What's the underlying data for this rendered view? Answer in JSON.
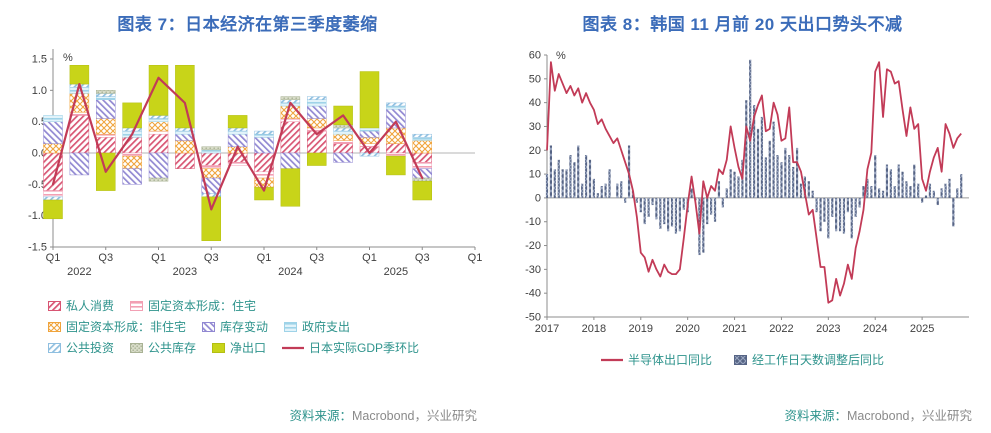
{
  "colors": {
    "title": "#3B6CB9",
    "teal_text": "#2E938C",
    "gray_text": "#8A8A8A",
    "axis": "#8C8C8C",
    "tick_text": "#404040",
    "crimson": "#C23B57"
  },
  "chart_data": [
    {
      "id": "japan-gdp",
      "type": "bar",
      "stacked": true,
      "title": "图表 7：日本经济在第三季度萎缩",
      "unit_label": "%",
      "ylim": [
        -1.5,
        1.5
      ],
      "yticks": [
        1.5,
        1.0,
        0.5,
        0.0,
        -0.5,
        -1.0,
        -1.5
      ],
      "x_tick_labels": [
        "Q1",
        "Q3",
        "Q1",
        "Q3",
        "Q1",
        "Q3",
        "Q1",
        "Q3",
        "Q1"
      ],
      "year_labels": [
        "2022",
        "2023",
        "2024",
        "2025"
      ],
      "categories": [
        "2022Q1",
        "2022Q2",
        "2022Q3",
        "2022Q4",
        "2023Q1",
        "2023Q2",
        "2023Q3",
        "2023Q4",
        "2024Q1",
        "2024Q2",
        "2024Q3",
        "2024Q4",
        "2025Q1",
        "2025Q2",
        "2025Q3"
      ],
      "series": [
        {
          "name": "私人消费",
          "pattern": {
            "kind": "diag",
            "fg": "#D85573",
            "bg": "#FFFFFF"
          },
          "values": [
            -0.6,
            0.6,
            0.25,
            0.25,
            0.3,
            -0.25,
            -0.2,
            -0.15,
            -0.3,
            0.5,
            0.35,
            0.15,
            0.1,
            0.15,
            -0.15
          ]
        },
        {
          "name": "固定资本形成：住宅",
          "pattern": {
            "kind": "horiz",
            "fg": "#F2A0B4",
            "bg": "#FFFFFF"
          },
          "values": [
            -0.1,
            0.05,
            0.05,
            -0.05,
            0.05,
            0.0,
            -0.05,
            -0.05,
            -0.1,
            0.05,
            0.05,
            0.05,
            0.05,
            -0.05,
            -0.1
          ]
        },
        {
          "name": "固定资本形成：非住宅",
          "pattern": {
            "kind": "cross",
            "fg": "#F0A43C",
            "bg": "#FFFFFF"
          },
          "values": [
            0.15,
            0.3,
            0.25,
            -0.2,
            0.15,
            0.2,
            -0.15,
            0.1,
            -0.15,
            0.2,
            0.15,
            0.1,
            0.1,
            0.25,
            0.2
          ]
        },
        {
          "name": "库存变动",
          "pattern": {
            "kind": "diag2",
            "fg": "#9188D2",
            "bg": "#FFFFFF"
          },
          "values": [
            0.35,
            -0.35,
            0.3,
            -0.25,
            -0.4,
            0.1,
            -0.25,
            0.2,
            0.25,
            -0.25,
            0.2,
            -0.15,
            0.1,
            0.3,
            -0.15
          ]
        },
        {
          "name": "政府支出",
          "pattern": {
            "kind": "horiz",
            "fg": "#9FD3E8",
            "bg": "#E2F3FA"
          },
          "values": [
            0.1,
            0.1,
            0.05,
            0.1,
            0.05,
            0.05,
            0.05,
            0.05,
            0.05,
            0.05,
            0.1,
            0.05,
            0.05,
            0.05,
            0.05
          ]
        },
        {
          "name": "公共投资",
          "pattern": {
            "kind": "diag",
            "fg": "#8FBFE0",
            "bg": "#FFFFFF"
          },
          "values": [
            -0.05,
            0.05,
            0.05,
            0.05,
            0.05,
            0.05,
            -0.05,
            0.05,
            0.05,
            0.05,
            0.05,
            0.05,
            -0.05,
            0.05,
            0.05
          ]
        },
        {
          "name": "公共库存",
          "pattern": {
            "kind": "dots",
            "fg": "#A9B295",
            "bg": "#D8DCC8"
          },
          "values": [
            0.0,
            0.0,
            0.05,
            0.0,
            -0.05,
            0.0,
            0.05,
            0.0,
            0.0,
            0.05,
            0.0,
            0.05,
            0.0,
            0.0,
            -0.05
          ]
        },
        {
          "name": "净出口",
          "pattern": {
            "kind": "solid",
            "fg": "#C8D419",
            "stroke": "#B3BE12"
          },
          "values": [
            -0.3,
            0.3,
            -0.6,
            0.4,
            0.8,
            1.0,
            -0.7,
            0.2,
            -0.2,
            -0.6,
            -0.2,
            0.3,
            0.9,
            -0.3,
            -0.3
          ]
        }
      ],
      "line": {
        "name": "日本实际GDP季环比",
        "color": "#C23B57",
        "values": [
          -0.5,
          1.1,
          -0.3,
          0.3,
          1.2,
          0.8,
          -0.9,
          0.1,
          -0.6,
          0.8,
          0.3,
          0.6,
          0.0,
          0.5,
          -0.4
        ]
      },
      "legend_rows": [
        [
          0,
          1
        ],
        [
          2,
          3,
          4
        ],
        [
          5,
          6,
          7,
          "line"
        ]
      ],
      "source_label": "资料来源：",
      "source_value": "Macrobond，兴业研究"
    },
    {
      "id": "korea-exports",
      "type": "bar",
      "title": "图表 8：韩国 11 月前 20 天出口势头不减",
      "unit_label": "%",
      "ylim": [
        -50,
        60
      ],
      "ytick_step": 10,
      "x_years": [
        "2017",
        "2018",
        "2019",
        "2020",
        "2021",
        "2022",
        "2023",
        "2024",
        "2025"
      ],
      "start_month": "2017-01",
      "bars": {
        "name": "经工作日天数调整后同比",
        "pattern": {
          "kind": "cross",
          "fg": "#9AA6C0",
          "bg": "#566485"
        },
        "values": [
          10,
          22,
          12,
          16,
          12,
          12,
          18,
          15,
          22,
          6,
          18,
          16,
          8,
          2,
          5,
          6,
          12,
          0,
          6,
          7,
          -2,
          22,
          3,
          -2,
          -6,
          -11,
          -8,
          -3,
          -9,
          -13,
          -11,
          -14,
          -12,
          -15,
          -14,
          -5,
          -6,
          4,
          -1,
          -24,
          -23,
          -11,
          -7,
          -10,
          7,
          -4,
          4,
          12,
          11,
          9,
          16,
          41,
          58,
          39,
          29,
          34,
          17,
          24,
          32,
          18,
          15,
          21,
          18,
          13,
          21,
          6,
          9,
          7,
          3,
          -6,
          -14,
          -10,
          -17,
          -8,
          -14,
          -14,
          -15,
          -6,
          -17,
          -8,
          -4,
          5,
          8,
          5,
          18,
          4,
          3,
          14,
          12,
          5,
          14,
          11,
          7,
          5,
          14,
          6,
          -2,
          1,
          6,
          3,
          -3,
          4,
          6,
          8,
          -12,
          4,
          10
        ]
      },
      "line": {
        "name": "半导体出口同比",
        "color": "#C23B57",
        "values": [
          20,
          57,
          45,
          52,
          48,
          44,
          47,
          43,
          46,
          40,
          44,
          40,
          37,
          31,
          33,
          29,
          26,
          23,
          25,
          20,
          15,
          10,
          3,
          -8,
          -23,
          -25,
          -31,
          -26,
          -30,
          -33,
          -28,
          -31,
          -32,
          -32,
          -30,
          -17,
          -3,
          9,
          -2,
          -15,
          7,
          0,
          5,
          3,
          12,
          10,
          16,
          30,
          21,
          13,
          8,
          30,
          24,
          34,
          39,
          43,
          28,
          29,
          40,
          35,
          24,
          25,
          38,
          15,
          15,
          11,
          2,
          -7,
          -5,
          -17,
          -29,
          -29,
          -44,
          -43,
          -34,
          -41,
          -36,
          -28,
          -34,
          -21,
          -14,
          -5,
          12,
          19,
          53,
          57,
          34,
          54,
          53,
          48,
          49,
          37,
          26,
          38,
          29,
          31,
          8,
          3,
          11,
          17,
          21,
          11,
          31,
          27,
          21,
          25,
          27
        ]
      },
      "source_label": "资料来源：",
      "source_value": "Macrobond，兴业研究"
    }
  ]
}
